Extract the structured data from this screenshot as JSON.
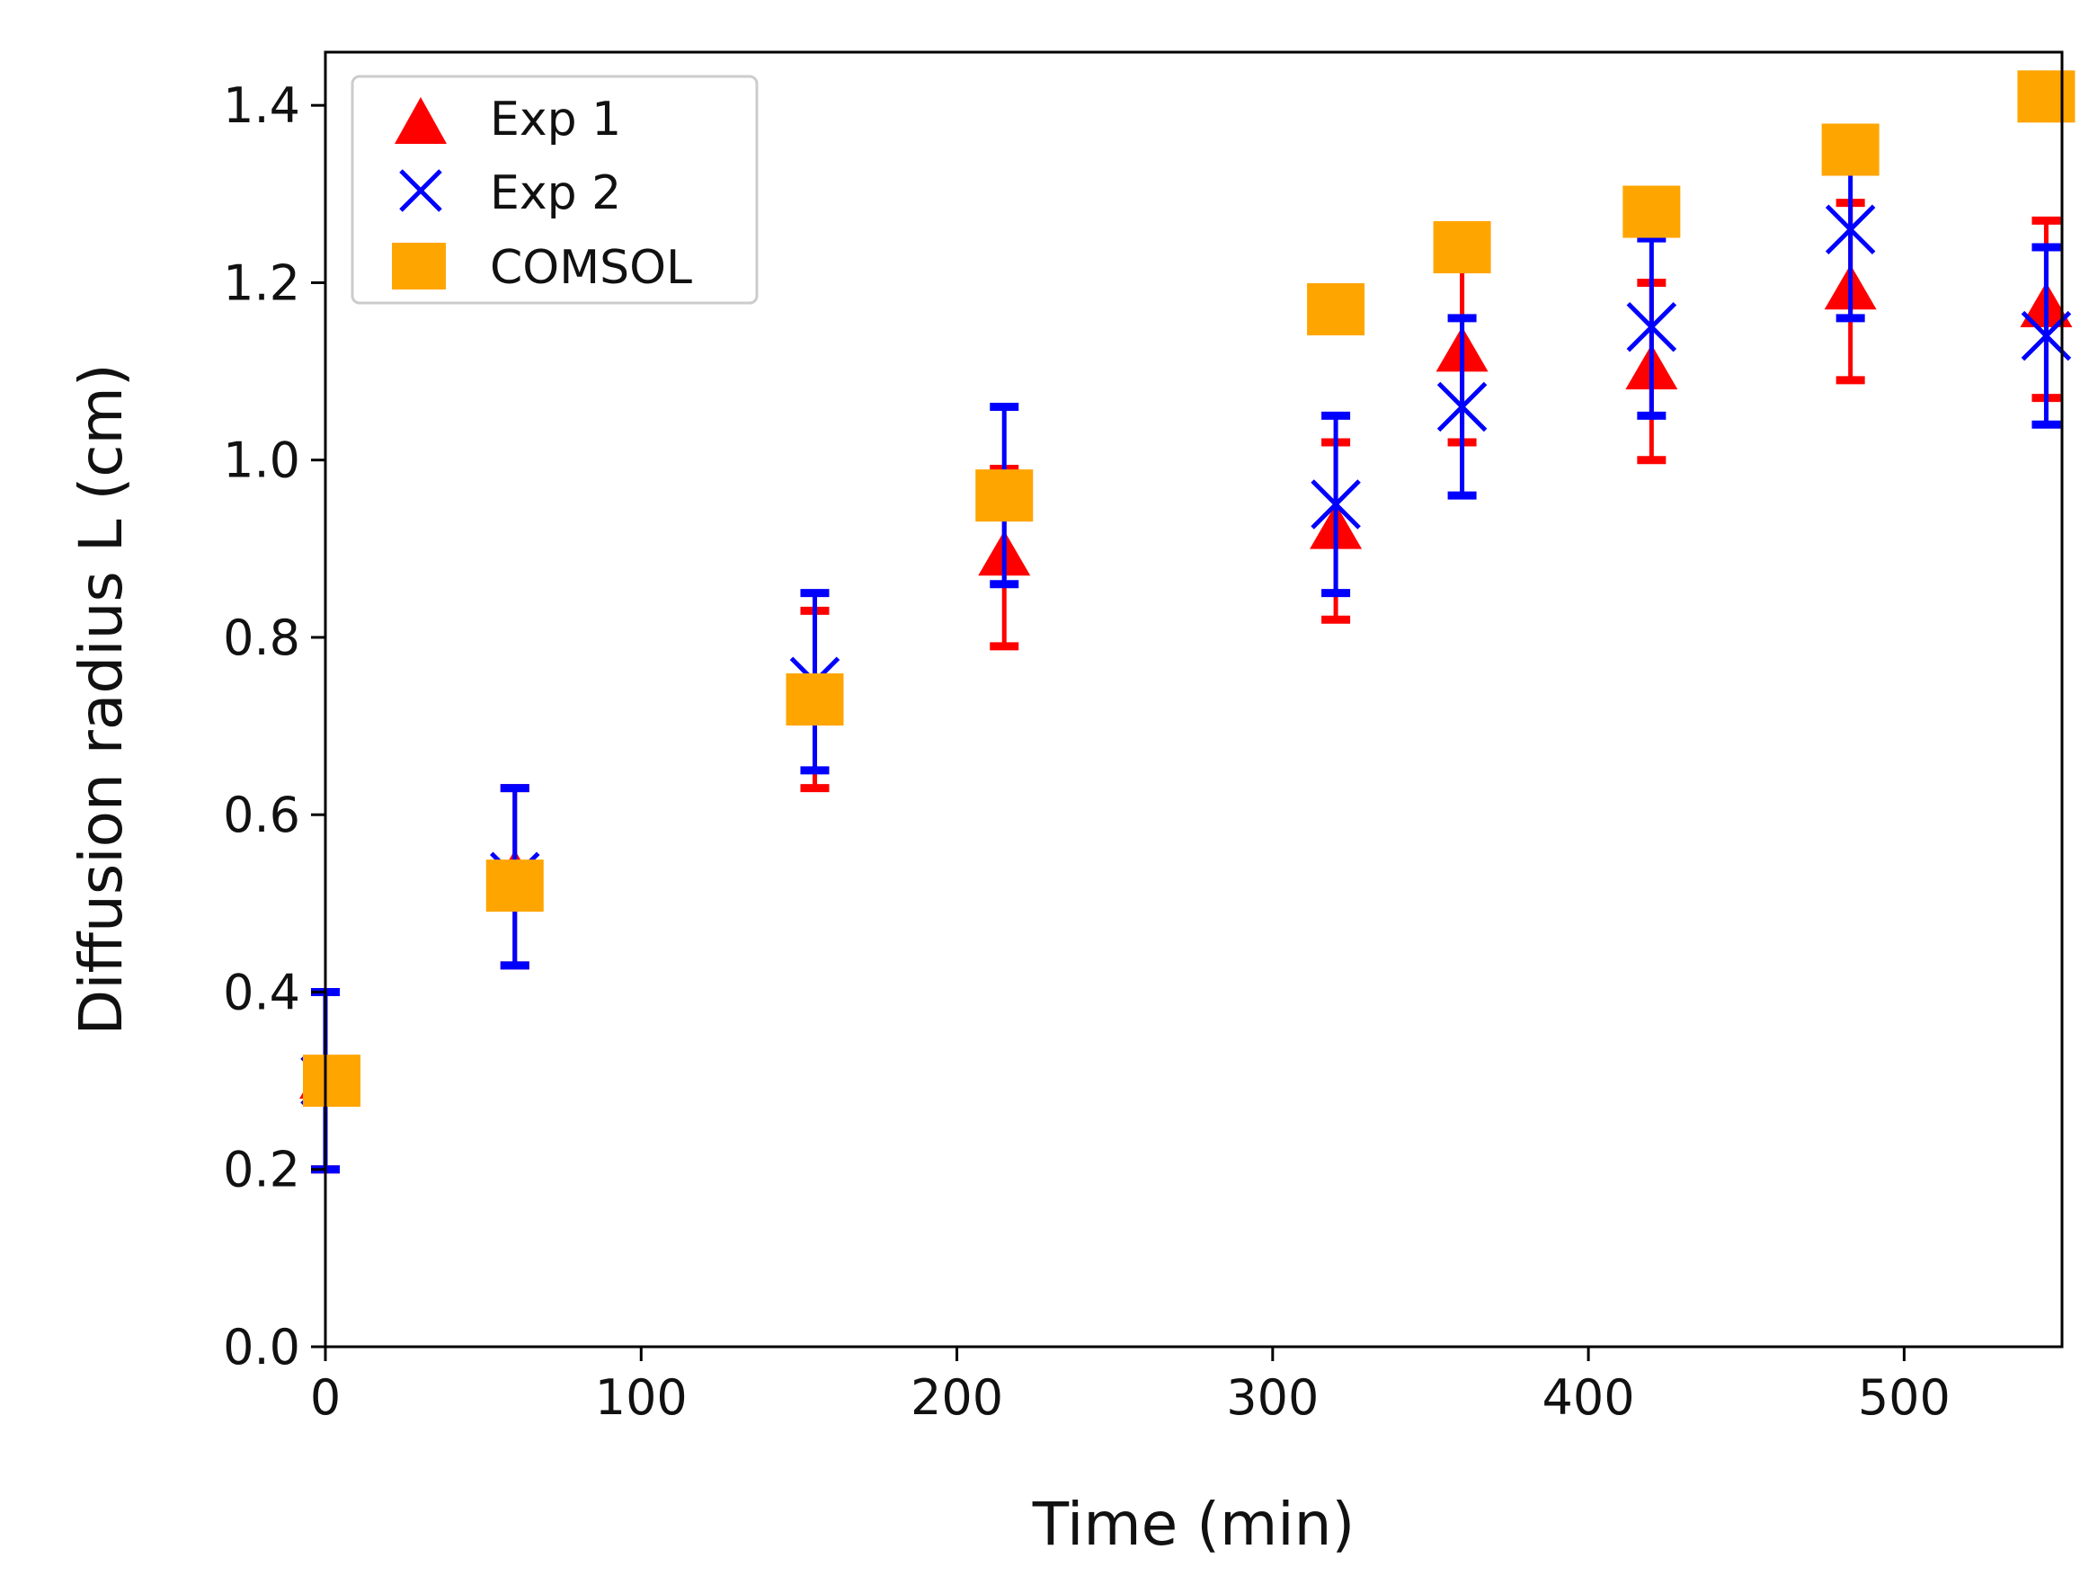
{
  "chart_data": {
    "type": "scatter",
    "title": "",
    "xlabel": "Time (min)",
    "ylabel": "Diffusion radius L (cm)",
    "xlim": [
      0,
      550
    ],
    "ylim": [
      0.0,
      1.46
    ],
    "xticks": [
      0,
      100,
      200,
      300,
      400,
      500
    ],
    "yticks": [
      0.0,
      0.2,
      0.4,
      0.6,
      0.8,
      1.0,
      1.2,
      1.4
    ],
    "ytick_labels": [
      "0.0",
      "0.2",
      "0.4",
      "0.6",
      "0.8",
      "1.0",
      "1.2",
      "1.4"
    ],
    "legend_position": "top-left",
    "grid": false,
    "series": [
      {
        "name": "Exp 1",
        "marker": "triangle",
        "color": "#ff0000",
        "x": [
          0,
          60,
          155,
          215,
          320,
          360,
          420,
          483,
          545
        ],
        "y": [
          0.3,
          0.53,
          0.73,
          0.89,
          0.92,
          1.12,
          1.1,
          1.19,
          1.17
        ],
        "yerr": [
          0.1,
          0.1,
          0.1,
          0.1,
          0.1,
          0.1,
          0.1,
          0.1,
          0.1
        ]
      },
      {
        "name": "Exp 2",
        "marker": "x",
        "color": "#0000ff",
        "x": [
          0,
          60,
          155,
          215,
          320,
          360,
          420,
          483,
          545
        ],
        "y": [
          0.3,
          0.53,
          0.75,
          0.96,
          0.95,
          1.06,
          1.15,
          1.26,
          1.14
        ],
        "yerr": [
          0.1,
          0.1,
          0.1,
          0.1,
          0.1,
          0.1,
          0.1,
          0.1,
          0.1
        ]
      },
      {
        "name": "COMSOL",
        "marker": "square",
        "color": "#ffa500",
        "x": [
          2,
          60,
          155,
          215,
          320,
          360,
          420,
          483,
          545
        ],
        "y": [
          0.3,
          0.52,
          0.73,
          0.96,
          1.17,
          1.24,
          1.28,
          1.35,
          1.41
        ],
        "yerr": []
      }
    ]
  }
}
